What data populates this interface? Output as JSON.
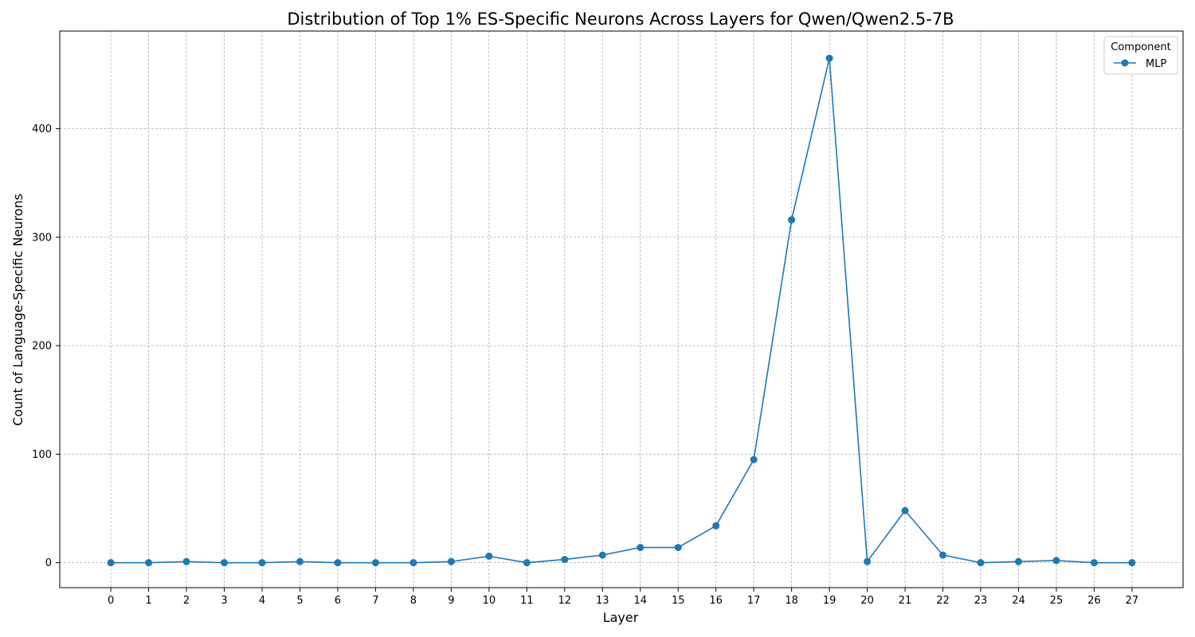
{
  "chart_data": {
    "type": "line",
    "title": "Distribution of Top 1% ES-Specific Neurons Across Layers for Qwen/Qwen2.5-7B",
    "xlabel": "Layer",
    "ylabel": "Count of Language-Specific Neurons",
    "x": [
      0,
      1,
      2,
      3,
      4,
      5,
      6,
      7,
      8,
      9,
      10,
      11,
      12,
      13,
      14,
      15,
      16,
      17,
      18,
      19,
      20,
      21,
      22,
      23,
      24,
      25,
      26,
      27
    ],
    "x_tick_labels": [
      "0",
      "1",
      "2",
      "3",
      "4",
      "5",
      "6",
      "7",
      "8",
      "9",
      "10",
      "11",
      "12",
      "13",
      "14",
      "15",
      "16",
      "17",
      "18",
      "19",
      "20",
      "21",
      "22",
      "23",
      "24",
      "25",
      "26",
      "27"
    ],
    "xlim": [
      -1.35,
      28.35
    ],
    "ylim": [
      -23,
      490
    ],
    "y_ticks": [
      0,
      100,
      200,
      300,
      400
    ],
    "y_tick_labels": [
      "0",
      "100",
      "200",
      "300",
      "400"
    ],
    "grid": true,
    "series": [
      {
        "name": "MLP",
        "color": "#1f77b4",
        "marker": "circle",
        "values": [
          0,
          0,
          1,
          0,
          0,
          1,
          0,
          0,
          0,
          1,
          6,
          0,
          3,
          7,
          14,
          14,
          34,
          95,
          316,
          465,
          1,
          48,
          7,
          0,
          1,
          2,
          0,
          0
        ]
      }
    ],
    "legend": {
      "title": "Component",
      "position": "top-right"
    }
  }
}
